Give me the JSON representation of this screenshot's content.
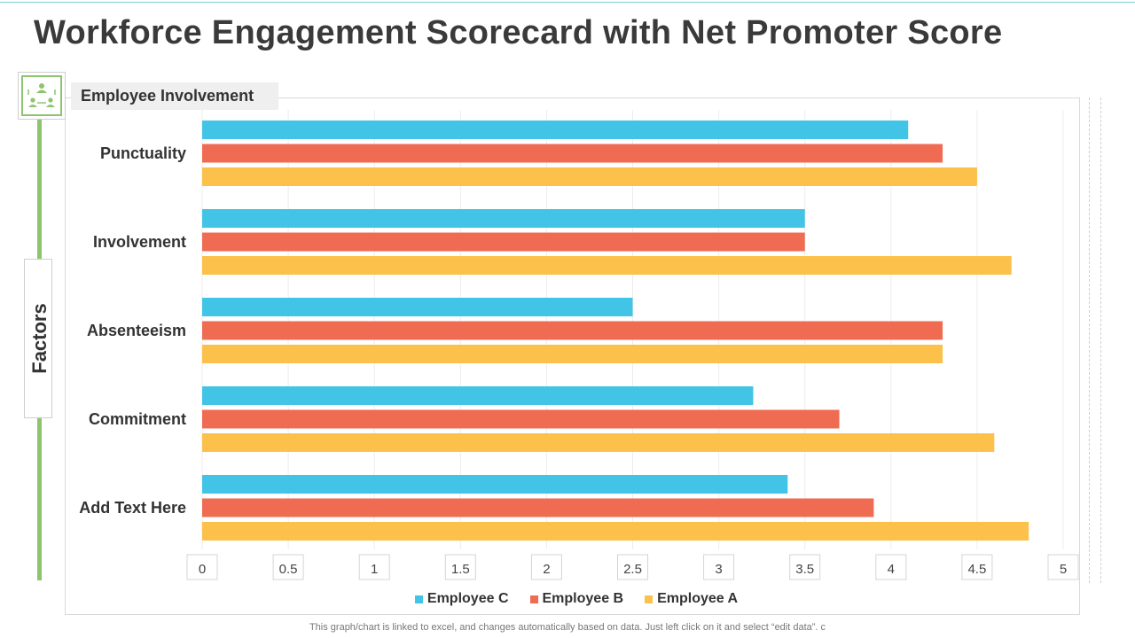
{
  "page": {
    "title": "Workforce Engagement Scorecard with Net Promoter Score",
    "section_label": "Employee Involvement",
    "y_axis_label": "Factors",
    "footnote": "This graph/chart is linked to excel,  and changes automatically based on data. Just left click on it and select “edit data”. c"
  },
  "icon": {
    "name": "team-network-icon",
    "color": "#8cc56e"
  },
  "chart_data": {
    "type": "bar",
    "orientation": "horizontal",
    "categories": [
      "Punctuality",
      "Involvement",
      "Absenteeism",
      "Commitment",
      "Add Text Here"
    ],
    "series": [
      {
        "name": "Employee C",
        "color": "#41c4e6",
        "values": [
          4.1,
          3.5,
          2.5,
          3.2,
          3.4
        ]
      },
      {
        "name": "Employee B",
        "color": "#ef6b52",
        "values": [
          4.3,
          3.5,
          4.3,
          3.7,
          3.9
        ]
      },
      {
        "name": "Employee A",
        "color": "#fcc14a",
        "values": [
          4.5,
          4.7,
          4.3,
          4.6,
          4.8
        ]
      }
    ],
    "xlim": [
      0,
      5
    ],
    "x_ticks": [
      "0",
      "0.5",
      "1",
      "1.5",
      "2",
      "2.5",
      "3",
      "3.5",
      "4",
      "4.5",
      "5"
    ],
    "grid": true,
    "legend_position": "bottom",
    "title": "Workforce Engagement Scorecard with Net Promoter Score",
    "xlabel": "",
    "ylabel": "Factors"
  }
}
